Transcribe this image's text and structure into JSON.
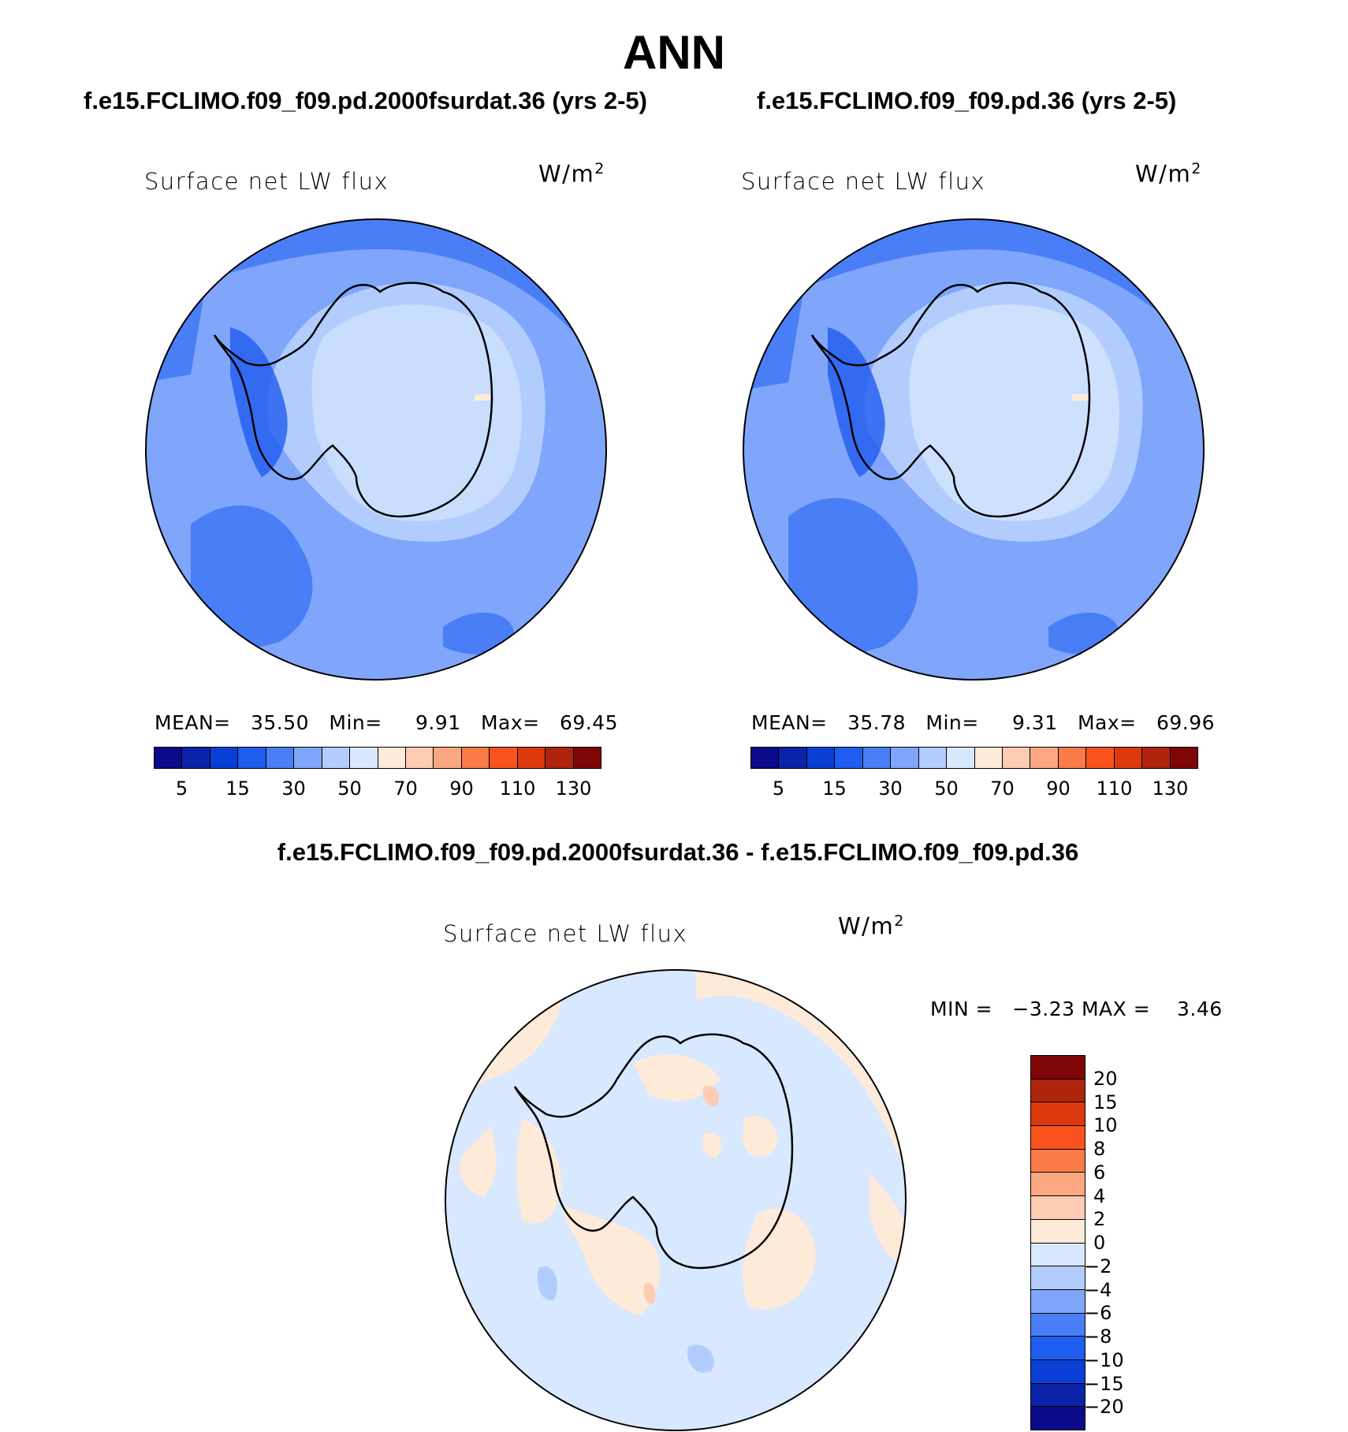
{
  "main_title": "ANN",
  "panels": [
    {
      "run_title": "f.e15.FCLIMO.f09_f09.pd.2000fsurdat.36 (yrs 2-5)",
      "variable": "Surface net LW flux",
      "units_base": "W/m",
      "units_exp": "2",
      "stats": {
        "mean_label": "MEAN=",
        "mean": "35.50",
        "min_label": "Min=",
        "min": "9.91",
        "max_label": "Max=",
        "max": "69.45"
      }
    },
    {
      "run_title": "f.e15.FCLIMO.f09_f09.pd.36 (yrs 2-5)",
      "variable": "Surface net LW flux",
      "units_base": "W/m",
      "units_exp": "2",
      "stats": {
        "mean_label": "MEAN=",
        "mean": "35.78",
        "min_label": "Min=",
        "min": "9.31",
        "max_label": "Max=",
        "max": "69.96"
      }
    }
  ],
  "diff_panel": {
    "title": "f.e15.FCLIMO.f09_f09.pd.2000fsurdat.36 - f.e15.FCLIMO.f09_f09.pd.36",
    "variable": "Surface net LW flux",
    "units_base": "W/m",
    "units_exp": "2",
    "minmax": {
      "min_label": "MIN =",
      "min": "−3.23",
      "max_label": "MAX =",
      "max": "3.46"
    }
  },
  "colorbar_abs": {
    "colors": [
      "#0a0a8a",
      "#0a23a8",
      "#0a3fd6",
      "#1f5cf0",
      "#4a7ef7",
      "#7fa6fb",
      "#b2cdfd",
      "#d8e8fe",
      "#feead9",
      "#fdccb3",
      "#fba882",
      "#fb7b47",
      "#f9521f",
      "#dc3a0e",
      "#b0230c",
      "#7e0606"
    ],
    "ticks": [
      "5",
      "15",
      "30",
      "50",
      "70",
      "90",
      "110",
      "130"
    ]
  },
  "colorbar_diff": {
    "colors": [
      "#7e0606",
      "#b0230c",
      "#dc3a0e",
      "#f9521f",
      "#fb7b47",
      "#fba882",
      "#fdccb3",
      "#feead9",
      "#d8e8fe",
      "#b2cdfd",
      "#7fa6fb",
      "#4a7ef7",
      "#1f5cf0",
      "#0a3fd6",
      "#0a23a8",
      "#0a0a8a"
    ],
    "ticks": [
      "20",
      "15",
      "10",
      "8",
      "6",
      "4",
      "2",
      "0",
      "−2",
      "−4",
      "−6",
      "−8",
      "−10",
      "−15",
      "−20"
    ]
  }
}
